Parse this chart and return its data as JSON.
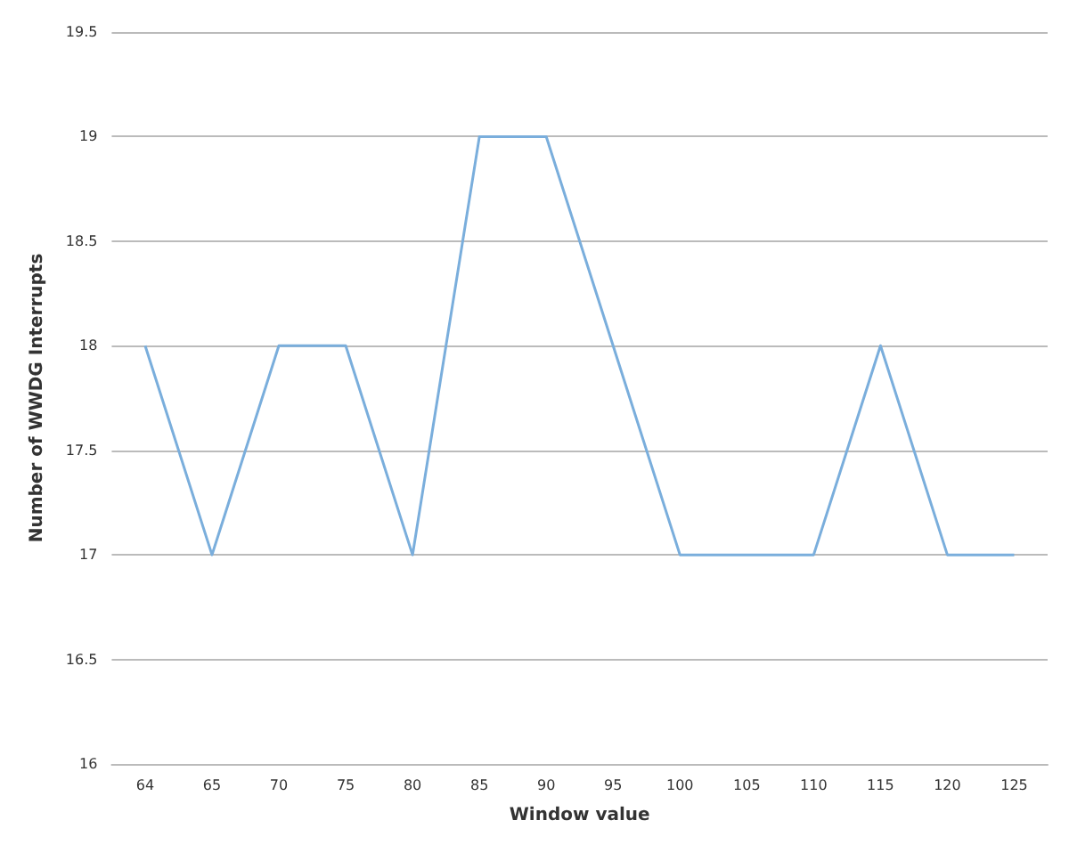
{
  "chart_data": {
    "type": "line",
    "xlabel": "Window value",
    "ylabel": "Number of WWDG Interrupts",
    "categories": [
      "64",
      "65",
      "70",
      "75",
      "80",
      "85",
      "90",
      "95",
      "100",
      "105",
      "110",
      "115",
      "120",
      "125"
    ],
    "series": [
      {
        "color": "#7aaedc",
        "values": [
          18,
          17,
          18,
          18,
          17,
          19,
          19,
          18,
          17,
          17,
          17,
          18,
          17,
          17
        ]
      }
    ],
    "ylim": [
      16,
      19.5
    ],
    "yticks": [
      16,
      16.5,
      17,
      17.5,
      18,
      18.5,
      19,
      19.5
    ],
    "grid": "y",
    "marker": "none",
    "line_style": "solid"
  }
}
